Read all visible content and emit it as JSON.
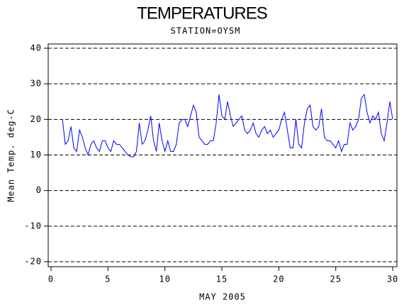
{
  "chart_data": {
    "type": "line",
    "title": "TEMPERATURES",
    "subtitle": "STATION=OYSM",
    "x_label": "MAY 2005",
    "y_label": "Mean Temp. deg-C",
    "x": [
      1,
      1.25,
      1.5,
      1.75,
      2,
      2.25,
      2.5,
      2.75,
      3,
      3.25,
      3.5,
      3.75,
      4,
      4.25,
      4.5,
      4.75,
      5,
      5.25,
      5.5,
      5.75,
      6,
      6.25,
      6.5,
      6.75,
      7,
      7.25,
      7.5,
      7.75,
      8,
      8.25,
      8.5,
      8.75,
      9,
      9.25,
      9.5,
      9.75,
      10,
      10.25,
      10.5,
      10.75,
      11,
      11.25,
      11.5,
      11.75,
      12,
      12.25,
      12.5,
      12.75,
      13,
      13.25,
      13.5,
      13.75,
      14,
      14.25,
      14.5,
      14.75,
      15,
      15.25,
      15.5,
      15.75,
      16,
      16.25,
      16.5,
      16.75,
      17,
      17.25,
      17.5,
      17.75,
      18,
      18.25,
      18.5,
      18.75,
      19,
      19.25,
      19.5,
      19.75,
      20,
      20.25,
      20.5,
      20.75,
      21,
      21.25,
      21.5,
      21.75,
      22,
      22.25,
      22.5,
      22.75,
      23,
      23.25,
      23.5,
      23.75,
      24,
      24.25,
      24.5,
      24.75,
      25,
      25.25,
      25.5,
      25.75,
      26,
      26.25,
      26.5,
      26.75,
      27,
      27.25,
      27.5,
      27.75,
      28,
      28.25,
      28.5,
      28.75,
      29,
      29.25,
      29.5,
      29.75,
      30
    ],
    "series": [
      {
        "name": "Mean Temp",
        "color": "#0000ff",
        "values": [
          20,
          13,
          14,
          18,
          12,
          11,
          17,
          15,
          12,
          10,
          13,
          14,
          12,
          11,
          14,
          14,
          12,
          11,
          14,
          13,
          13,
          12,
          11,
          10,
          9.5,
          9.5,
          11,
          19,
          13,
          14,
          17,
          21,
          14,
          11,
          19,
          14,
          11,
          14,
          11,
          11,
          13,
          19,
          20,
          20,
          18,
          21,
          24,
          22,
          15,
          14,
          13,
          13,
          14,
          14,
          19,
          27,
          21,
          20,
          25,
          21,
          18,
          19,
          20,
          21,
          17,
          16,
          17,
          19,
          16,
          15,
          17,
          18,
          16,
          17,
          15,
          16,
          17,
          20,
          22,
          17,
          12,
          12,
          20,
          13,
          12,
          19,
          23,
          24,
          18,
          17,
          18,
          23,
          15,
          14,
          14,
          13,
          12,
          14,
          11,
          13,
          13,
          19,
          17,
          18,
          20,
          26,
          27,
          22,
          19,
          21,
          20,
          22,
          16,
          14,
          19,
          25,
          20
        ]
      }
    ],
    "xlim": [
      -0.25,
      30.37
    ],
    "xticks": [
      0,
      5,
      10,
      15,
      20,
      25,
      30
    ],
    "ylim": [
      -21.4,
      41.2
    ],
    "yticks": [
      -20,
      -10,
      0,
      10,
      20,
      30,
      40
    ],
    "grid": true
  }
}
